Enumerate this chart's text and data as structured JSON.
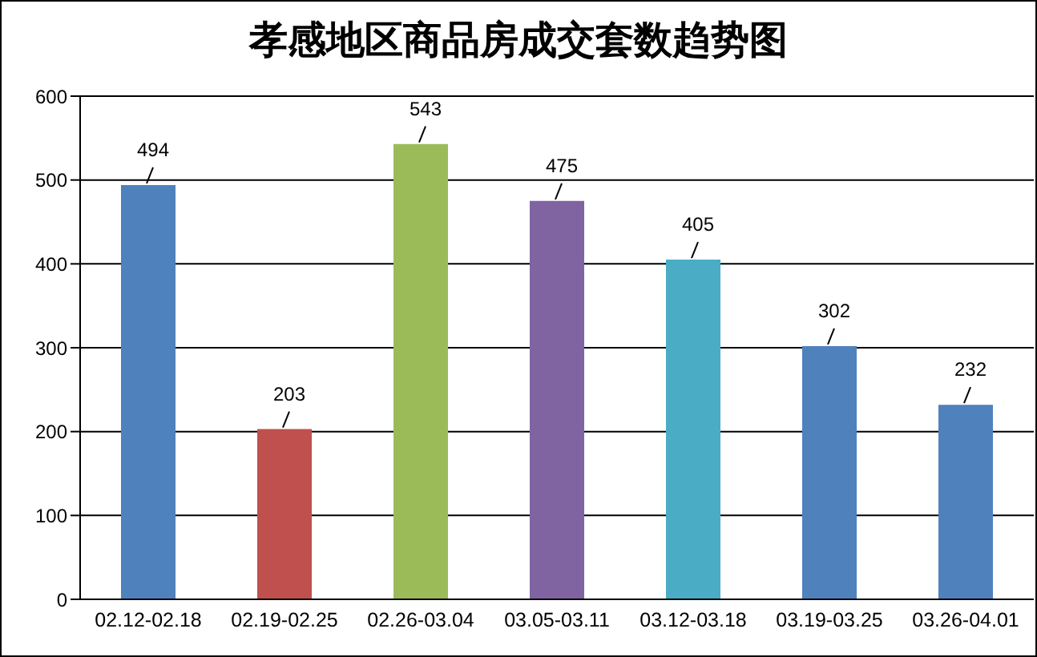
{
  "chart_data": {
    "type": "bar",
    "title": "孝感地区商品房成交套数趋势图",
    "categories": [
      "02.12-02.18",
      "02.19-02.25",
      "02.26-03.04",
      "03.05-03.11",
      "03.12-03.18",
      "03.19-03.25",
      "03.26-04.01"
    ],
    "values": [
      494,
      203,
      543,
      475,
      405,
      302,
      232
    ],
    "colors": [
      "#4f81bd",
      "#c0504d",
      "#9bbb59",
      "#8064a2",
      "#4bacc6",
      "#4f81bd",
      "#4f81bd"
    ],
    "ylim": [
      0,
      600
    ],
    "yticks": [
      0,
      100,
      200,
      300,
      400,
      500,
      600
    ],
    "grid": "y",
    "data_labels": true
  }
}
